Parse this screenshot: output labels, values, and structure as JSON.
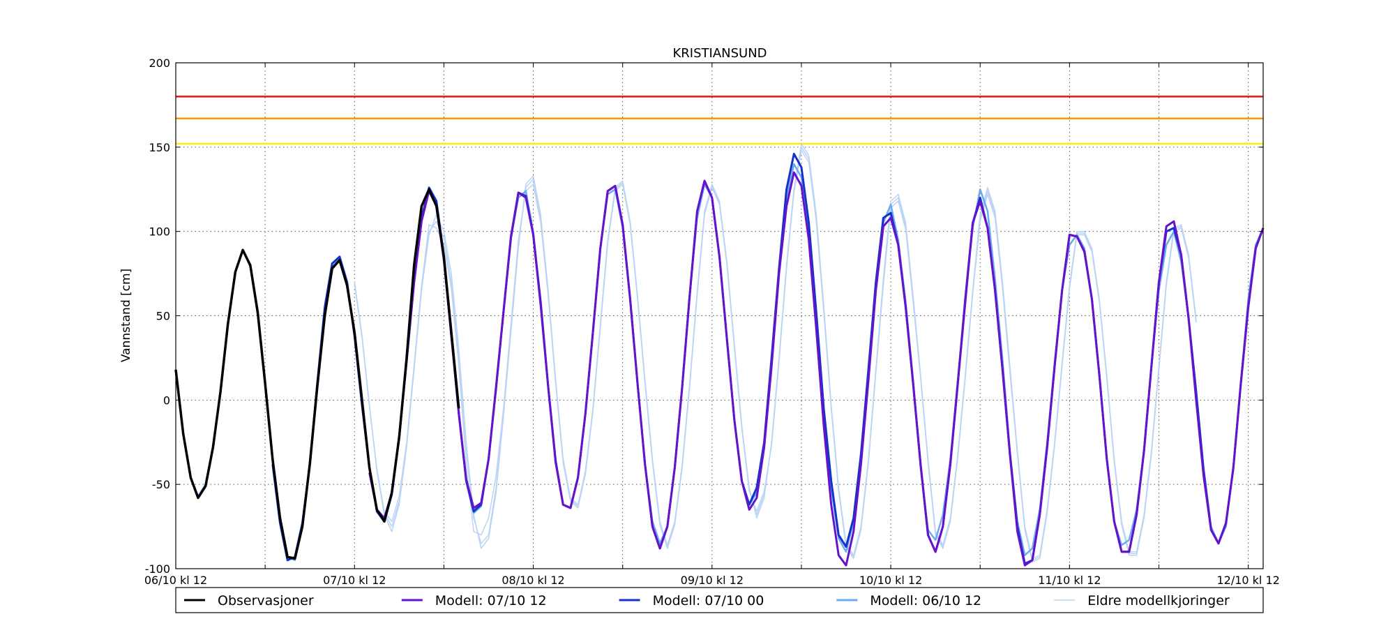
{
  "chart_data": {
    "type": "line",
    "title": "KRISTIANSUND",
    "ylabel": "Vannstand [cm]",
    "xlabel": "",
    "x_unit": "hours",
    "xlim": [
      0,
      146
    ],
    "ylim": [
      -100,
      200
    ],
    "y_ticks": [
      200,
      150,
      100,
      50,
      0,
      -50,
      -100
    ],
    "x_tick_labels": [
      {
        "x": 0,
        "label": "06/10 kl 12"
      },
      {
        "x": 24,
        "label": "07/10 kl 12"
      },
      {
        "x": 48,
        "label": "08/10 kl 12"
      },
      {
        "x": 72,
        "label": "09/10 kl 12"
      },
      {
        "x": 96,
        "label": "10/10 kl 12"
      },
      {
        "x": 120,
        "label": "11/10 kl 12"
      },
      {
        "x": 144,
        "label": "12/10 kl 12"
      }
    ],
    "minor_x_ticks": [
      12,
      36,
      60,
      84,
      108,
      132
    ],
    "grid": true,
    "legend_position": "bottom",
    "threshold_lines": [
      {
        "y": 180,
        "color": "#ee1111"
      },
      {
        "y": 167,
        "color": "#ff9900"
      },
      {
        "y": 152,
        "color": "#ffee00"
      }
    ],
    "series": [
      {
        "name": "Modell: 06/10 12",
        "color": "#6aaaee",
        "width": 2.5,
        "start": 0,
        "values": [
          17,
          -20,
          -46,
          -57,
          -50,
          -28,
          5,
          45,
          76,
          89,
          79,
          50,
          8,
          -35,
          -71,
          -93,
          -95,
          -75,
          -36,
          10,
          50,
          79,
          84,
          70,
          38,
          -3,
          -40,
          -66,
          -72,
          -56,
          -22,
          23,
          70,
          108,
          124,
          115,
          82,
          38,
          -8,
          -48,
          -67,
          -63,
          -35,
          7,
          52,
          96,
          120,
          124,
          100,
          58,
          8,
          -36,
          -62,
          -64,
          -46,
          -8,
          40,
          90,
          122,
          125,
          102,
          60,
          10,
          -38,
          -72,
          -85,
          -75,
          -40,
          8,
          62,
          108,
          128,
          120,
          85,
          36,
          -12,
          -48,
          -62,
          -55,
          -28,
          20,
          75,
          120,
          140,
          132,
          100,
          48,
          -8,
          -52,
          -82,
          -90,
          -72,
          -32,
          20,
          68,
          105,
          116,
          95,
          58,
          12,
          -40,
          -77,
          -83,
          -68,
          -35,
          12,
          60,
          102,
          125,
          112,
          72,
          24,
          -30,
          -72,
          -92,
          -88,
          -65,
          -25,
          22,
          65,
          92,
          98,
          90,
          60,
          15,
          -35,
          -72,
          -86,
          -83,
          -65,
          -30,
          20,
          65,
          92,
          100,
          82,
          48,
          5,
          -40,
          -75,
          -85,
          -75,
          -40,
          10,
          60,
          92,
          102
        ]
      },
      {
        "name": "Modell: 07/10 00",
        "color": "#1133cc",
        "width": 3,
        "start": 13,
        "values": [
          -38,
          -73,
          -95,
          -93,
          -73,
          -38,
          10,
          55,
          81,
          85,
          70,
          38,
          -3,
          -40,
          -66,
          -72,
          -56,
          -22,
          23,
          70,
          108,
          126,
          118,
          85,
          38,
          -8,
          -48,
          -66,
          -62,
          -35,
          7,
          52,
          96,
          123,
          121,
          98,
          58,
          8,
          -36,
          -62,
          -64,
          -46,
          -8,
          40,
          90,
          124,
          127,
          104,
          60,
          10,
          -38,
          -75,
          -88,
          -75,
          -40,
          8,
          62,
          112,
          130,
          120,
          85,
          36,
          -12,
          -48,
          -62,
          -52,
          -25,
          25,
          78,
          125,
          146,
          138,
          105,
          52,
          -5,
          -48,
          -80,
          -87,
          -70,
          -32,
          18,
          70,
          108,
          111,
          92,
          55,
          10,
          -38,
          -80,
          -90,
          -75,
          -38,
          10,
          60,
          105,
          120,
          102,
          65,
          18,
          -32,
          -75,
          -97,
          -95,
          -68,
          -28,
          20,
          65,
          98,
          97,
          88,
          60,
          15,
          -35,
          -72,
          -90,
          -90,
          -68,
          -30,
          20,
          70,
          100,
          102,
          86,
          48,
          5,
          -42,
          -77,
          -85,
          -73,
          -40,
          10,
          55,
          90,
          102
        ]
      },
      {
        "name": "Modell: 07/10 12",
        "color": "#6611cc",
        "width": 3,
        "start": 26,
        "values": [
          -43,
          -65,
          -70,
          -55,
          -22,
          24,
          70,
          106,
          124,
          115,
          83,
          38,
          -8,
          -47,
          -64,
          -61,
          -35,
          8,
          52,
          97,
          123,
          120,
          98,
          56,
          8,
          -37,
          -62,
          -64,
          -46,
          -8,
          40,
          90,
          124,
          127,
          104,
          60,
          10,
          -38,
          -75,
          -88,
          -75,
          -40,
          8,
          62,
          112,
          130,
          120,
          85,
          36,
          -12,
          -48,
          -65,
          -58,
          -28,
          20,
          75,
          115,
          135,
          127,
          95,
          42,
          -15,
          -62,
          -92,
          -98,
          -78,
          -38,
          12,
          65,
          103,
          108,
          92,
          55,
          10,
          -38,
          -80,
          -90,
          -75,
          -38,
          10,
          58,
          105,
          118,
          102,
          65,
          18,
          -32,
          -78,
          -98,
          -95,
          -68,
          -28,
          20,
          65,
          98,
          97,
          88,
          60,
          15,
          -35,
          -72,
          -90,
          -90,
          -68,
          -30,
          20,
          70,
          103,
          106,
          86,
          48,
          0,
          -45,
          -77,
          -85,
          -73,
          -40,
          10,
          55,
          90,
          102
        ]
      },
      {
        "name": "Observasjoner",
        "color": "#000000",
        "width": 3.5,
        "start": 0,
        "values": [
          18,
          -20,
          -46,
          -58,
          -51,
          -28,
          5,
          45,
          76,
          89,
          80,
          52,
          10,
          -35,
          -70,
          -93,
          -94,
          -75,
          -38,
          8,
          50,
          78,
          83,
          68,
          40,
          0,
          -40,
          -65,
          -72,
          -55,
          -22,
          25,
          80,
          115,
          125,
          115,
          85,
          40,
          -5
        ]
      }
    ],
    "older_runs": {
      "name": "Eldre modellkjoringer",
      "color": "#bbd4f4",
      "runs": [
        {
          "start": 24,
          "values": [
            70,
            38,
            -3,
            -42,
            -68,
            -78,
            -62,
            -28,
            18,
            65,
            98,
            110,
            100,
            75,
            30,
            -25,
            -68,
            -88,
            -82,
            -55,
            -10,
            40,
            90,
            128,
            133,
            110,
            65,
            12,
            -35,
            -58,
            -62,
            -42,
            -5,
            45,
            95,
            126,
            130,
            106,
            62,
            12,
            -35,
            -72,
            -86,
            -72,
            -38,
            10,
            64,
            112,
            128,
            118,
            82,
            33,
            -15,
            -52,
            -70,
            -58,
            -25,
            25,
            80,
            125,
            152,
            145,
            110,
            56,
            -3,
            -52,
            -85,
            -92,
            -75,
            -35,
            18,
            72,
            118,
            122,
            105,
            62,
            15,
            -35,
            -78,
            -86,
            -70,
            -32,
            15,
            65,
            110,
            126,
            112,
            70,
            20,
            -30,
            -75,
            -94,
            -92,
            -65,
            -25,
            22,
            68,
            100,
            100,
            90,
            60,
            15,
            -35,
            -72,
            -90,
            -90,
            -68,
            -30,
            20,
            70,
            102,
            104,
            86,
            48
          ]
        },
        {
          "start": 24,
          "values": [
            69,
            37,
            -4,
            -41,
            -67,
            -75,
            -60,
            -27,
            20,
            66,
            100,
            106,
            96,
            70,
            25,
            -30,
            -70,
            -85,
            -80,
            -52,
            -8,
            42,
            92,
            126,
            131,
            108,
            64,
            11,
            -36,
            -59,
            -63,
            -43,
            -6,
            44,
            94,
            125,
            129,
            105,
            61,
            11,
            -36,
            -73,
            -87,
            -73,
            -39,
            9,
            63,
            111,
            127,
            117,
            81,
            32,
            -16,
            -53,
            -68,
            -56,
            -26,
            24,
            79,
            124,
            150,
            143,
            108,
            54,
            -4,
            -53,
            -86,
            -93,
            -76,
            -36,
            17,
            70,
            116,
            120,
            103,
            60,
            14,
            -36,
            -79,
            -87,
            -71,
            -33,
            14,
            64,
            108,
            124,
            110,
            68,
            18,
            -31,
            -76,
            -95,
            -93,
            -66,
            -26,
            21,
            67,
            99,
            99,
            89,
            59,
            14,
            -36,
            -73,
            -91,
            -91,
            -69,
            -31,
            19,
            69,
            101,
            103,
            85,
            47
          ]
        },
        {
          "start": 24,
          "values": [
            70,
            38,
            -3,
            -41,
            -66,
            -72,
            -57,
            -25,
            21,
            68,
            104,
            102,
            92,
            66,
            20,
            -38,
            -78,
            -80,
            -70,
            -45,
            -5,
            45,
            95,
            124,
            128,
            105,
            62,
            10,
            -37,
            -60,
            -64,
            -44,
            -7,
            43,
            93,
            124,
            128,
            104,
            60,
            10,
            -37,
            -74,
            -88,
            -74,
            -40,
            8,
            62,
            110,
            126,
            116,
            80,
            31,
            -17,
            -54,
            -66,
            -54,
            -27,
            23,
            78,
            123,
            148,
            141,
            106,
            52,
            -5,
            -54,
            -87,
            -94,
            -77,
            -37,
            16,
            68,
            114,
            118,
            101,
            58,
            13,
            -37,
            -80,
            -88,
            -72,
            -34,
            13,
            63,
            106,
            122,
            108,
            66,
            16,
            -32,
            -77,
            -96,
            -94,
            -67,
            -27,
            20,
            66,
            98,
            98,
            88,
            58,
            13,
            -37,
            -74,
            -92,
            -92,
            -70,
            -32,
            18,
            68,
            100,
            102,
            84,
            46
          ]
        }
      ]
    }
  },
  "legend": [
    {
      "label": "Observasjoner",
      "color": "#000000",
      "width": 3
    },
    {
      "label": "Modell: 07/10 12",
      "color": "#6611cc",
      "width": 3
    },
    {
      "label": "Modell: 07/10 00",
      "color": "#1133cc",
      "width": 3
    },
    {
      "label": "Modell: 06/10 12",
      "color": "#6aaaee",
      "width": 3
    },
    {
      "label": "Eldre modellkjoringer",
      "color": "#bbd4f4",
      "width": 1.5
    }
  ]
}
